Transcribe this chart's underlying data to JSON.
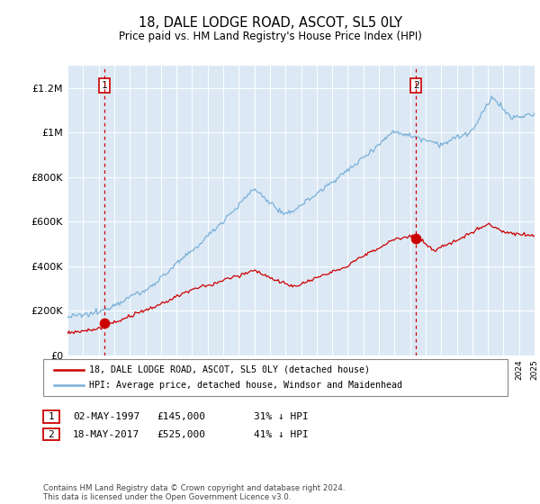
{
  "title": "18, DALE LODGE ROAD, ASCOT, SL5 0LY",
  "subtitle": "Price paid vs. HM Land Registry's House Price Index (HPI)",
  "background_color": "#dce9f5",
  "ylim": [
    0,
    1300000
  ],
  "yticks": [
    0,
    200000,
    400000,
    600000,
    800000,
    1000000,
    1200000
  ],
  "ytick_labels": [
    "£0",
    "£200K",
    "£400K",
    "£600K",
    "£800K",
    "£1M",
    "£1.2M"
  ],
  "sale1_year": 1997.37,
  "sale1_price": 145000,
  "sale2_year": 2017.37,
  "sale2_price": 525000,
  "sale1_date": "02-MAY-1997",
  "sale1_note": "31% ↓ HPI",
  "sale2_date": "18-MAY-2017",
  "sale2_note": "41% ↓ HPI",
  "hpi_color": "#7ab0d8",
  "sale_color": "#cc0000",
  "legend_label1": "18, DALE LODGE ROAD, ASCOT, SL5 0LY (detached house)",
  "legend_label2": "HPI: Average price, detached house, Windsor and Maidenhead",
  "footer": "Contains HM Land Registry data © Crown copyright and database right 2024.\nThis data is licensed under the Open Government Licence v3.0.",
  "xmin": 1995,
  "xmax": 2025
}
